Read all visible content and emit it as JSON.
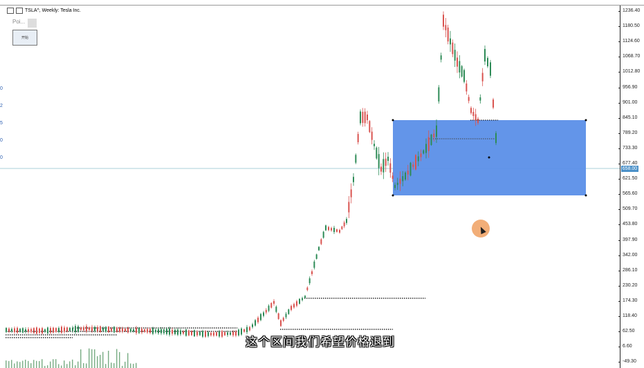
{
  "window": {
    "title": "TSLA^, Weekly:  Tesla Inc."
  },
  "panel": {
    "poi_label": "Poi...",
    "button_label": "开始"
  },
  "price_axis": {
    "labels": [
      "1236.40",
      "1180.50",
      "1124.60",
      "1068.70",
      "1012.80",
      "956.90",
      "901.00",
      "845.10",
      "789.20",
      "733.30",
      "677.40",
      "621.50",
      "565.60",
      "509.70",
      "453.80",
      "397.90",
      "342.00",
      "286.10",
      "230.20",
      "174.30",
      "118.40",
      "62.50",
      "6.60",
      "-49.30"
    ],
    "current_price": "658.00"
  },
  "left_edge_labels": [
    "0",
    "2",
    "5",
    "0",
    "0"
  ],
  "subtitle": "这个区间我们希望价格退到",
  "colors": {
    "bull": "#2e8b57",
    "bear": "#d9534f",
    "zone": "#5b8fe8",
    "current_line": "#8fbfd0",
    "cursor": "#f0a060"
  }
}
